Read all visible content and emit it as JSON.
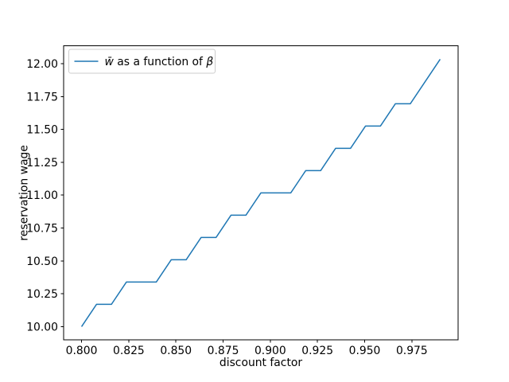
{
  "chart_data": {
    "type": "line",
    "title": "",
    "xlabel": "discount factor",
    "ylabel": "reservation wage",
    "background": "#ffffff",
    "spine_color": "#000000",
    "grid": false,
    "xlim": [
      0.7905,
      0.9995
    ],
    "ylim": [
      9.8983,
      12.1356
    ],
    "xticks": {
      "values": [
        0.8,
        0.825,
        0.85,
        0.875,
        0.9,
        0.925,
        0.95,
        0.975
      ],
      "labels": [
        "0.800",
        "0.825",
        "0.850",
        "0.875",
        "0.900",
        "0.925",
        "0.950",
        "0.975"
      ]
    },
    "yticks": {
      "values": [
        10.0,
        10.25,
        10.5,
        10.75,
        11.0,
        11.25,
        11.5,
        11.75,
        12.0
      ],
      "labels": [
        "10.00",
        "10.25",
        "10.50",
        "10.75",
        "11.00",
        "11.25",
        "11.50",
        "11.75",
        "12.00"
      ]
    },
    "x": [
      0.8,
      0.80792,
      0.81583,
      0.82375,
      0.83167,
      0.83958,
      0.8475,
      0.85542,
      0.86333,
      0.87125,
      0.87917,
      0.88708,
      0.895,
      0.90292,
      0.91083,
      0.91875,
      0.92667,
      0.93458,
      0.9425,
      0.95042,
      0.95833,
      0.96625,
      0.97417,
      0.98208,
      0.99
    ],
    "series": [
      {
        "name": "w̄ as a function of β",
        "color": "#1f77b4",
        "values": [
          10.0,
          10.16949,
          10.16949,
          10.33898,
          10.33898,
          10.33898,
          10.50847,
          10.50847,
          10.67797,
          10.67797,
          10.84746,
          10.84746,
          11.01695,
          11.01695,
          11.01695,
          11.18644,
          11.18644,
          11.35593,
          11.35593,
          11.52542,
          11.52542,
          11.69492,
          11.69492,
          11.86441,
          12.0339
        ]
      }
    ],
    "legend": {
      "position": "upper left",
      "border_color": "#cccccc",
      "face_color": "#ffffff",
      "entries": [
        {
          "label": "w̄ as a function of β",
          "color": "#1f77b4",
          "label_parts": [
            {
              "text": "w̄",
              "italic": true
            },
            {
              "text": " as a function of ",
              "italic": false
            },
            {
              "text": "β",
              "italic": true
            }
          ]
        }
      ]
    }
  }
}
